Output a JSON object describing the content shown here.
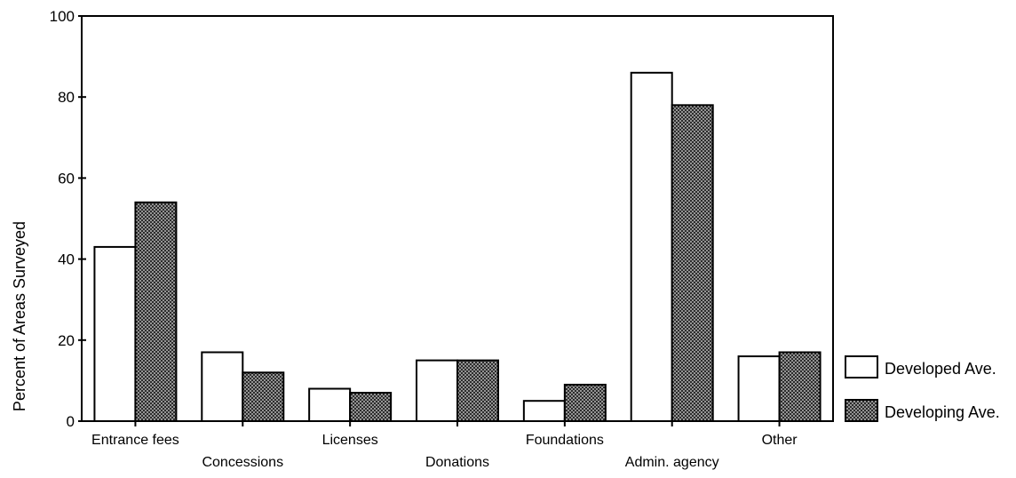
{
  "chart_data": {
    "type": "bar",
    "title": "",
    "xlabel": "",
    "ylabel": "Percent of Areas Surveyed",
    "ylim": [
      0,
      100
    ],
    "yticks": [
      0,
      20,
      40,
      60,
      80,
      100
    ],
    "grid": false,
    "legend_position": "right",
    "categories": [
      "Entrance fees",
      "Concessions",
      "Licenses",
      "Donations",
      "Foundations",
      "Admin. agency",
      "Other"
    ],
    "series": [
      {
        "name": "Developed Ave.",
        "values": [
          43,
          17,
          8,
          15,
          5,
          86,
          16
        ],
        "fill": "#ffffff"
      },
      {
        "name": "Developing Ave.",
        "values": [
          54,
          12,
          7,
          15,
          9,
          78,
          17
        ],
        "fill": "#8a8a8a"
      }
    ]
  }
}
